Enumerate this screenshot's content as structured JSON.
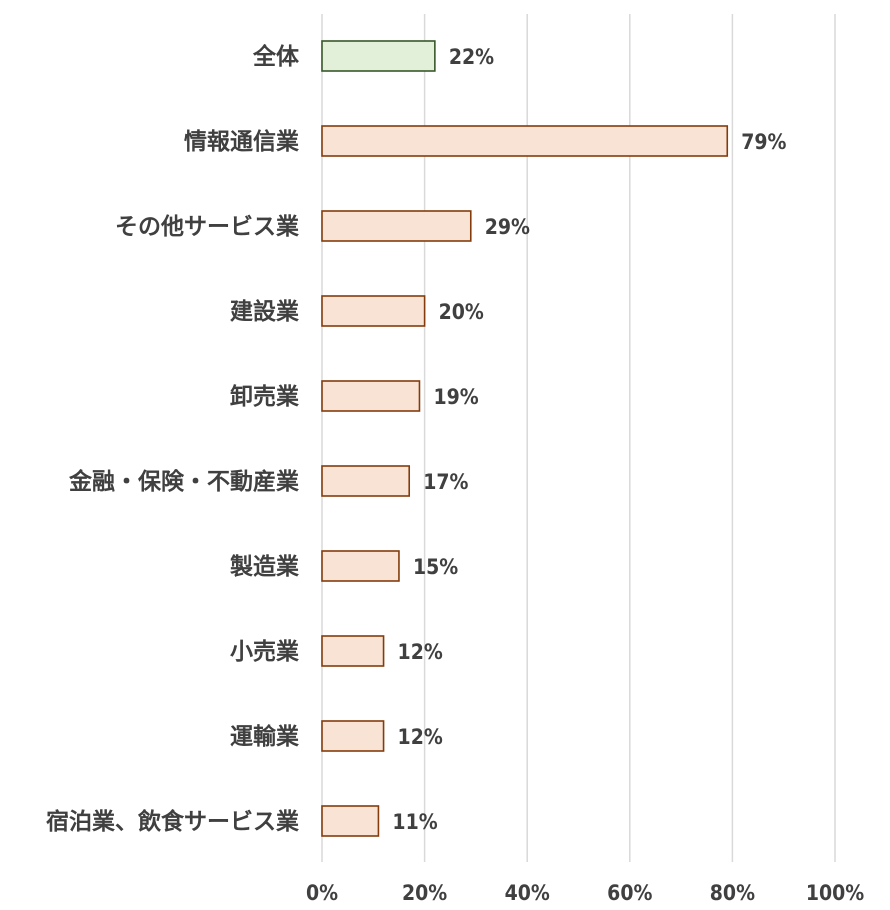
{
  "chart_data": {
    "type": "bar",
    "orientation": "horizontal",
    "title": "",
    "xlabel": "",
    "ylabel": "",
    "categories": [
      "全体",
      "情報通信業",
      "その他サービス業",
      "建設業",
      "卸売業",
      "金融・保険・不動産業",
      "製造業",
      "小売業",
      "運輸業",
      "宿泊業、飲食サービス業"
    ],
    "values": [
      22,
      79,
      29,
      20,
      19,
      17,
      15,
      12,
      12,
      11
    ],
    "value_labels": [
      "22%",
      "79%",
      "29%",
      "20%",
      "19%",
      "17%",
      "15%",
      "12%",
      "12%",
      "11%"
    ],
    "xlim": [
      0,
      100
    ],
    "x_ticks": [
      0,
      20,
      40,
      60,
      80,
      100
    ],
    "x_tick_labels": [
      "0%",
      "20%",
      "40%",
      "60%",
      "80%",
      "100%"
    ],
    "grid": true,
    "legend": "none",
    "colors": {
      "highlight_fill": "#e2f0d9",
      "highlight_stroke": "#38572a",
      "bar_fill": "#f8e3d4",
      "bar_stroke": "#843c0c",
      "grid": "#d9d9d9",
      "text": "#404040"
    }
  }
}
